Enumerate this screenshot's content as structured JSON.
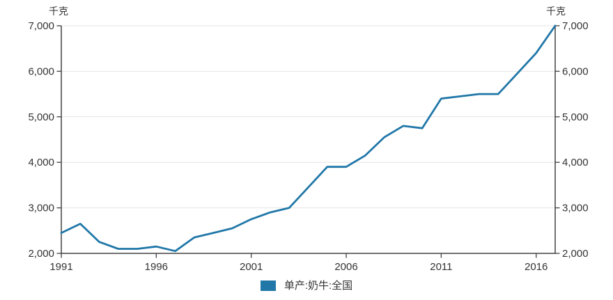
{
  "unit_label_left": "千克",
  "unit_label_right": "千克",
  "legend": {
    "items": [
      {
        "label": "单产:奶牛:全国",
        "color": "#2077a8"
      }
    ]
  },
  "chart_data": {
    "type": "line",
    "x": [
      1991,
      1992,
      1993,
      1994,
      1995,
      1996,
      1997,
      1998,
      1999,
      2000,
      2001,
      2002,
      2003,
      2004,
      2005,
      2006,
      2007,
      2008,
      2009,
      2010,
      2011,
      2012,
      2013,
      2014,
      2015,
      2016,
      2017
    ],
    "series": [
      {
        "name": "单产:奶牛:全国",
        "values": [
          2450,
          2650,
          2250,
          2100,
          2100,
          2150,
          2050,
          2350,
          2450,
          2550,
          2750,
          2900,
          3000,
          3450,
          3900,
          3900,
          4150,
          4550,
          4800,
          4750,
          5400,
          5450,
          5500,
          5500,
          5950,
          6400,
          7000
        ]
      }
    ],
    "ylabel": "千克",
    "ylim": [
      2000,
      7000
    ],
    "yticks": [
      2000,
      3000,
      4000,
      5000,
      6000,
      7000
    ],
    "ytick_labels": [
      "2,000",
      "3,000",
      "4,000",
      "5,000",
      "6,000",
      "7,000"
    ],
    "xticks": [
      1991,
      1996,
      2001,
      2006,
      2011,
      2016
    ],
    "grid": true,
    "legend_position": "bottom",
    "line_color": "#2077a8",
    "axis_color": "#404040",
    "grid_color": "#e4e4e4",
    "text_color": "#333333"
  }
}
